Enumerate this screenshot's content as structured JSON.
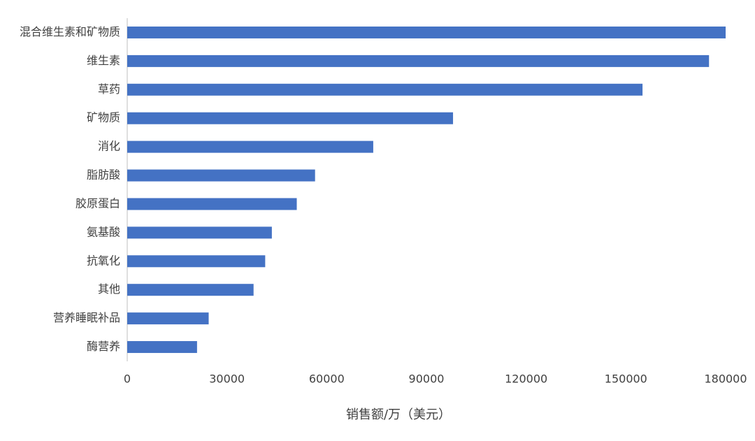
{
  "chart_data": {
    "type": "bar",
    "orientation": "horizontal",
    "x_label": "销售额/万（美元）",
    "categories": [
      "混合维生素和矿物质",
      "维生素",
      "草药",
      "矿物质",
      "消化",
      "脂肪酸",
      "胶原蛋白",
      "氨基酸",
      "抗氧化",
      "其他",
      "营养睡眠补品",
      "酶营养"
    ],
    "values": [
      180000,
      175000,
      155000,
      98000,
      74000,
      56500,
      51000,
      43500,
      41500,
      38000,
      24500,
      21000
    ],
    "color": "#4472c4",
    "xlim": [
      0,
      180000
    ],
    "xticks": [
      0,
      30000,
      60000,
      90000,
      120000,
      150000,
      180000
    ],
    "grid": false
  }
}
